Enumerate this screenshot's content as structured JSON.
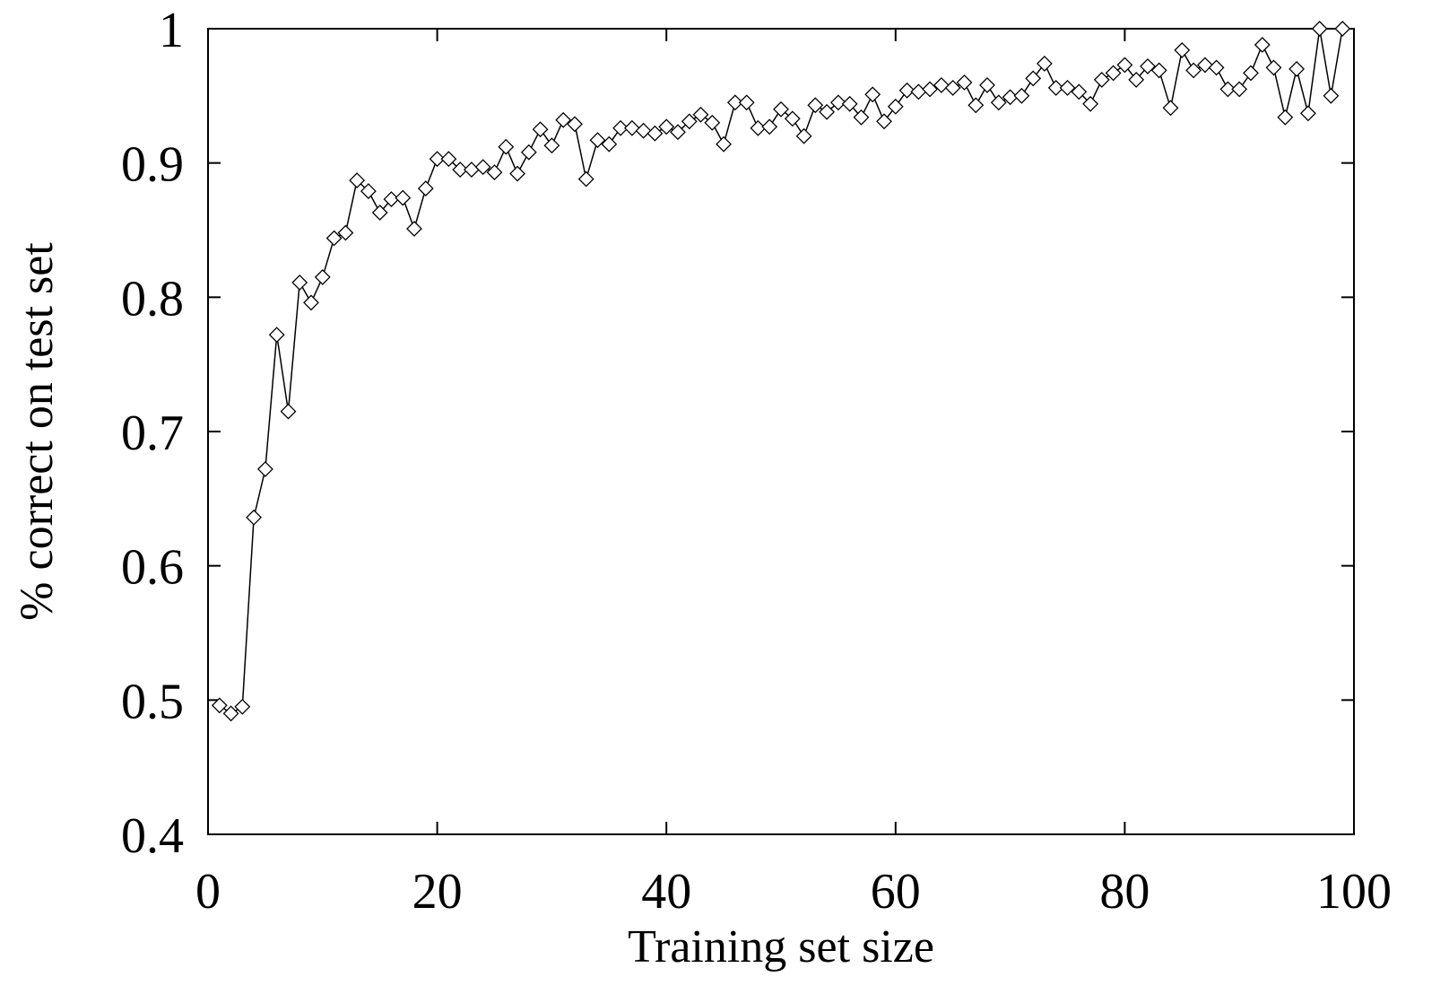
{
  "chart_data": {
    "type": "line",
    "title": "",
    "xlabel": "Training set size",
    "ylabel": "% correct on test set",
    "xlim": [
      0,
      100
    ],
    "ylim": [
      0.4,
      1
    ],
    "x_ticks": [
      "0",
      "20",
      "40",
      "60",
      "80",
      "100"
    ],
    "y_ticks": [
      "0.4",
      "0.5",
      "0.6",
      "0.7",
      "0.8",
      "0.9",
      "1"
    ],
    "grid": false,
    "legend": "none",
    "marker": "diamond",
    "line_color": "#000000",
    "series": [
      {
        "x": [
          1,
          2,
          3,
          4,
          5,
          6,
          7,
          8,
          9,
          10,
          11,
          12,
          13,
          14,
          15,
          16,
          17,
          18,
          19,
          20,
          21,
          22,
          23,
          24,
          25,
          26,
          27,
          28,
          29,
          30,
          31,
          32,
          33,
          34,
          35,
          36,
          37,
          38,
          39,
          40,
          41,
          42,
          43,
          44,
          45,
          46,
          47,
          48,
          49,
          50,
          51,
          52,
          53,
          54,
          55,
          56,
          57,
          58,
          59,
          60,
          61,
          62,
          63,
          64,
          65,
          66,
          67,
          68,
          69,
          70,
          71,
          72,
          73,
          74,
          75,
          76,
          77,
          78,
          79,
          80,
          81,
          82,
          83,
          84,
          85,
          86,
          87,
          88,
          89,
          90,
          91,
          92,
          93,
          94,
          95,
          96,
          97,
          98,
          99
        ],
        "values": [
          0.496,
          0.49,
          0.495,
          0.636,
          0.672,
          0.772,
          0.715,
          0.811,
          0.796,
          0.815,
          0.844,
          0.848,
          0.887,
          0.879,
          0.863,
          0.873,
          0.874,
          0.851,
          0.881,
          0.903,
          0.903,
          0.895,
          0.895,
          0.897,
          0.893,
          0.912,
          0.892,
          0.908,
          0.925,
          0.913,
          0.932,
          0.929,
          0.888,
          0.917,
          0.914,
          0.926,
          0.926,
          0.924,
          0.922,
          0.927,
          0.923,
          0.931,
          0.936,
          0.93,
          0.914,
          0.945,
          0.945,
          0.926,
          0.927,
          0.94,
          0.933,
          0.92,
          0.943,
          0.938,
          0.945,
          0.944,
          0.934,
          0.951,
          0.931,
          0.942,
          0.954,
          0.953,
          0.955,
          0.958,
          0.956,
          0.96,
          0.943,
          0.958,
          0.945,
          0.949,
          0.95,
          0.963,
          0.974,
          0.956,
          0.956,
          0.953,
          0.944,
          0.962,
          0.967,
          0.973,
          0.962,
          0.972,
          0.969,
          0.941,
          0.984,
          0.969,
          0.973,
          0.971,
          0.955,
          0.955,
          0.967,
          0.988,
          0.971,
          0.934,
          0.97,
          0.937,
          1.0,
          0.95,
          1.0
        ]
      }
    ]
  }
}
